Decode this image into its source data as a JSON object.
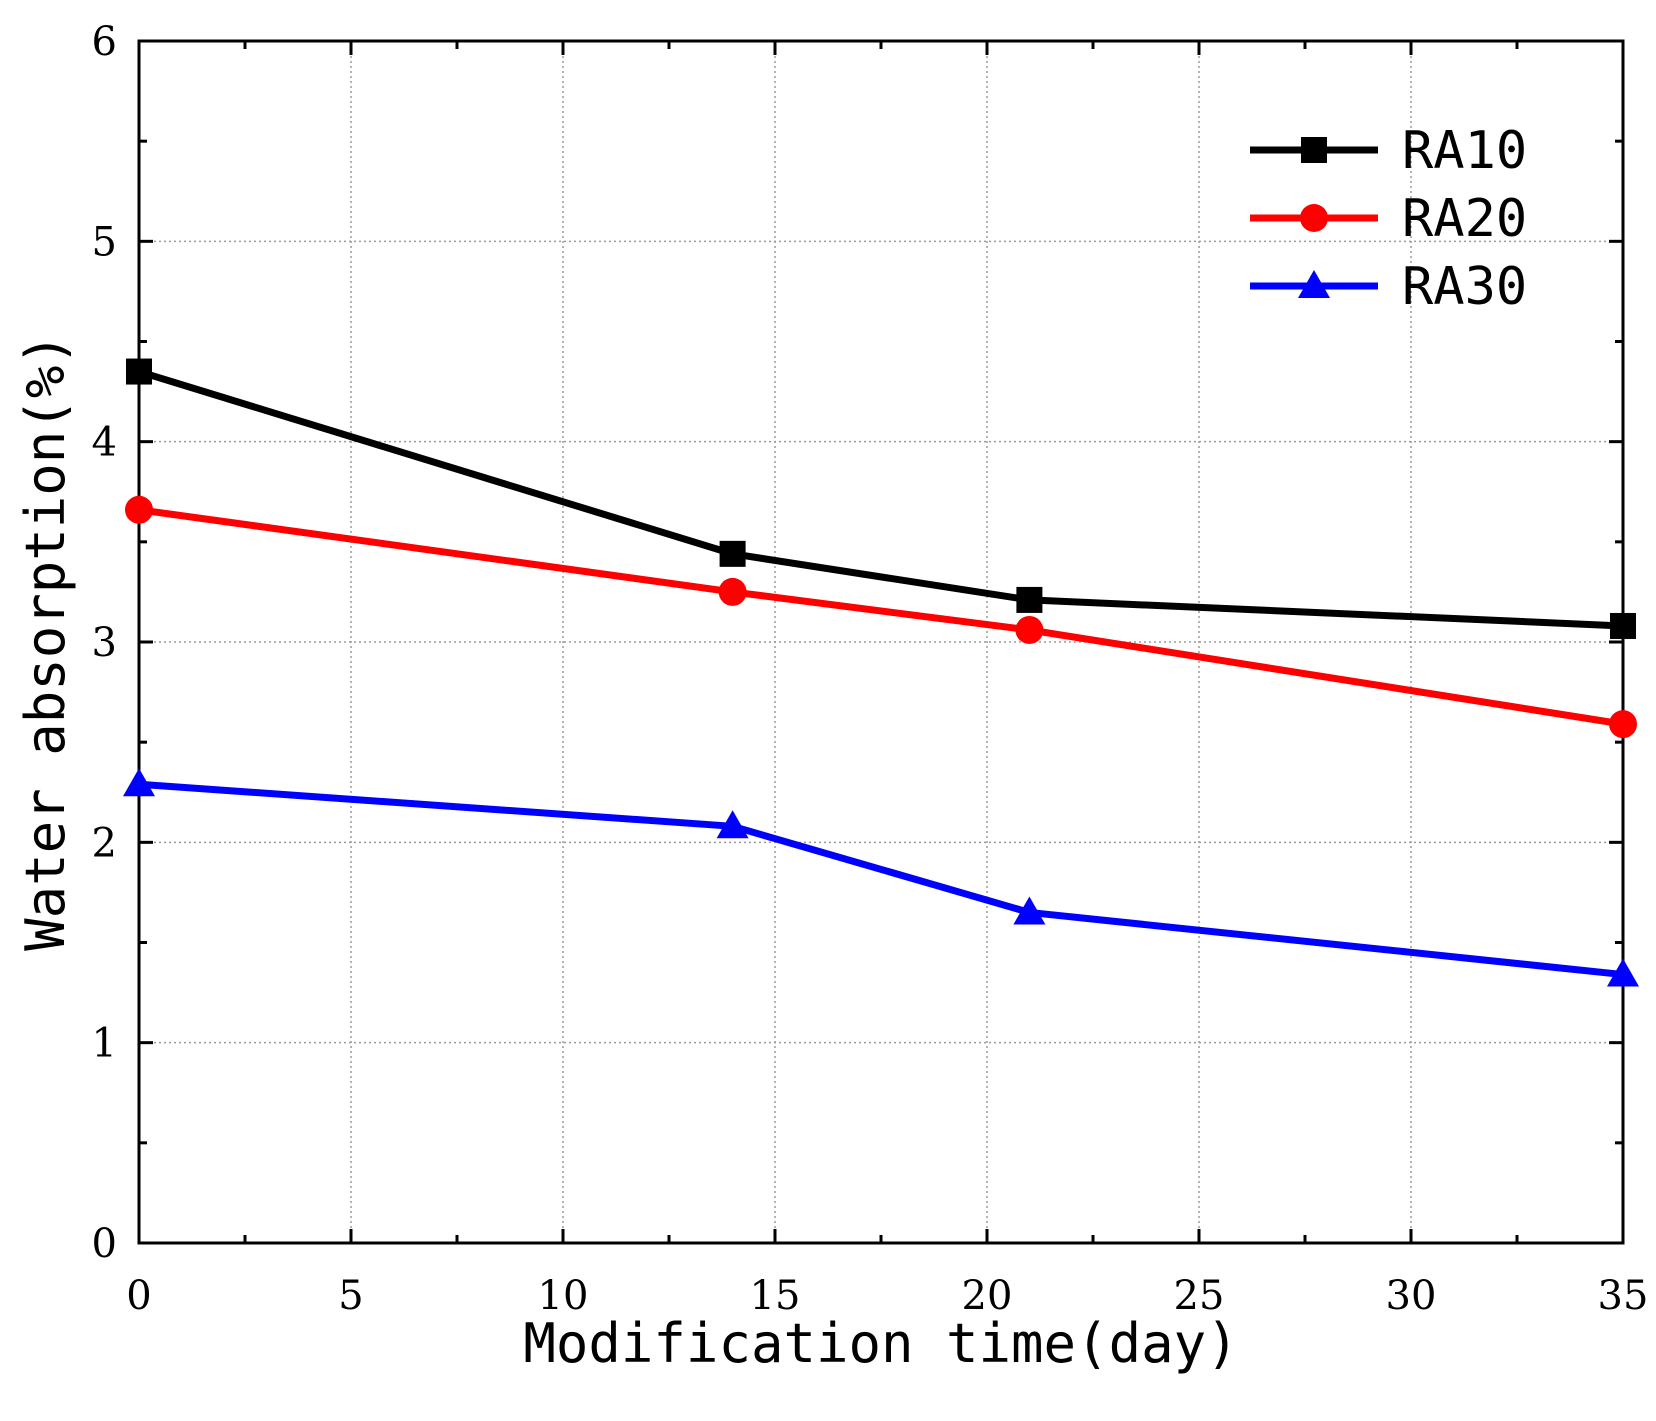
{
  "chart_data": {
    "type": "line",
    "title": "",
    "xlabel": "Modification time(day)",
    "ylabel": "Water absorption(%)",
    "xlim": [
      0,
      35
    ],
    "ylim": [
      0,
      6
    ],
    "xticks": [
      0,
      5,
      10,
      15,
      20,
      25,
      30,
      35
    ],
    "yticks": [
      0,
      1,
      2,
      3,
      4,
      5,
      6
    ],
    "grid": true,
    "legend_position": "top-right",
    "series": [
      {
        "name": "RA10",
        "color": "#000000",
        "marker": "square",
        "x": [
          0,
          14,
          21,
          35
        ],
        "y": [
          4.35,
          3.44,
          3.21,
          3.08
        ]
      },
      {
        "name": "RA20",
        "color": "#ff0000",
        "marker": "circle",
        "x": [
          0,
          14,
          21,
          35
        ],
        "y": [
          3.66,
          3.25,
          3.06,
          2.59
        ]
      },
      {
        "name": "RA30",
        "color": "#0000ff",
        "marker": "triangle",
        "x": [
          0,
          14,
          21,
          35
        ],
        "y": [
          2.29,
          2.08,
          1.65,
          1.34
        ]
      }
    ]
  }
}
